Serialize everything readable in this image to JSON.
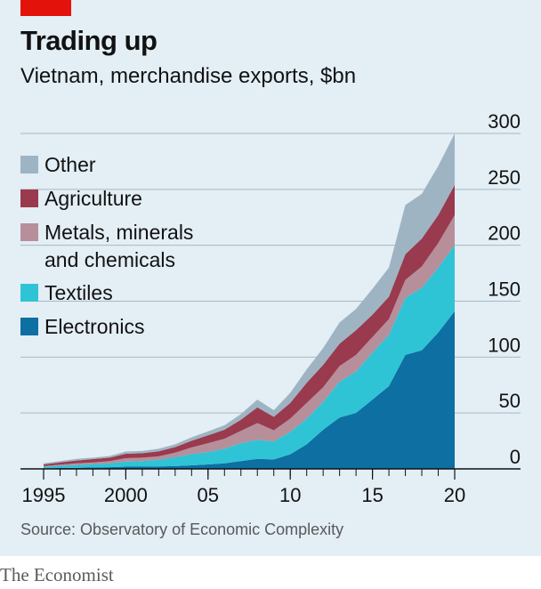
{
  "header": {
    "title": "Trading up",
    "subtitle": "Vietnam, merchandise exports, $bn"
  },
  "footer": {
    "source": "Source: Observatory of Economic Complexity",
    "brand": "The Economist"
  },
  "colors": {
    "Electronics": "#0d6fa2",
    "Textiles": "#2fc3d6",
    "Metals": "#b68f9b",
    "Agriculture": "#9a3a4e",
    "Other": "#9fb4c3",
    "accent": "#e3120b"
  },
  "legend": [
    {
      "key": "Other",
      "label": [
        "Other"
      ]
    },
    {
      "key": "Agriculture",
      "label": [
        "Agriculture"
      ]
    },
    {
      "key": "Metals",
      "label": [
        "Metals, minerals",
        "and chemicals"
      ]
    },
    {
      "key": "Textiles",
      "label": [
        "Textiles"
      ]
    },
    {
      "key": "Electronics",
      "label": [
        "Electronics"
      ]
    }
  ],
  "chart_data": {
    "type": "area",
    "stacked": true,
    "title": "Trading up",
    "subtitle": "Vietnam, merchandise exports, $bn",
    "x": [
      1995,
      1996,
      1997,
      1998,
      1999,
      2000,
      2001,
      2002,
      2003,
      2004,
      2005,
      2006,
      2007,
      2008,
      2009,
      2010,
      2011,
      2012,
      2013,
      2014,
      2015,
      2016,
      2017,
      2018,
      2019,
      2020
    ],
    "x_tick_values": [
      1995,
      2000,
      2005,
      2010,
      2015,
      2020
    ],
    "x_tick_labels": [
      "1995",
      "2000",
      "05",
      "10",
      "15",
      "20"
    ],
    "y_ticks": [
      0,
      50,
      100,
      150,
      200,
      250,
      300
    ],
    "ylim": [
      0,
      300
    ],
    "grid": true,
    "y_axis_position": "right",
    "legend_position": "top-left",
    "series": [
      {
        "name": "Electronics",
        "values": [
          0.5,
          0.8,
          1.0,
          1.3,
          1.5,
          2.0,
          2.0,
          2.2,
          2.5,
          3.2,
          4.0,
          5.0,
          7.0,
          9.0,
          8.5,
          13.0,
          22.0,
          35.0,
          46.0,
          50.0,
          62.0,
          74.0,
          102.0,
          106.0,
          122.0,
          141.0
        ]
      },
      {
        "name": "Textiles",
        "values": [
          1.5,
          2.0,
          2.5,
          3.0,
          3.5,
          4.5,
          5.0,
          6.0,
          8.0,
          10.0,
          11.0,
          13.0,
          16.0,
          17.0,
          16.0,
          20.0,
          23.0,
          25.0,
          32.0,
          37.0,
          42.0,
          46.0,
          51.0,
          56.0,
          58.0,
          59.0
        ]
      },
      {
        "name": "Metals, minerals and chemicals",
        "values": [
          0.5,
          1.0,
          1.5,
          1.5,
          2.0,
          3.0,
          3.0,
          3.0,
          4.0,
          6.0,
          8.0,
          9.0,
          11.0,
          15.0,
          10.0,
          12.0,
          14.0,
          13.0,
          14.0,
          15.0,
          14.0,
          14.0,
          16.0,
          19.0,
          22.0,
          27.0
        ]
      },
      {
        "name": "Agriculture",
        "values": [
          1.5,
          2.0,
          2.5,
          3.0,
          3.0,
          4.0,
          4.0,
          4.5,
          5.0,
          6.0,
          7.0,
          8.0,
          10.0,
          14.0,
          12.0,
          14.0,
          18.0,
          20.0,
          20.0,
          22.0,
          20.0,
          20.0,
          23.0,
          25.0,
          25.0,
          27.0
        ]
      },
      {
        "name": "Other",
        "values": [
          1.0,
          1.2,
          1.5,
          1.2,
          1.5,
          2.0,
          2.0,
          2.3,
          2.5,
          3.0,
          3.5,
          4.0,
          5.0,
          7.0,
          6.0,
          9.0,
          12.0,
          15.0,
          19.0,
          19.0,
          23.0,
          26.0,
          44.0,
          40.0,
          44.0,
          46.0
        ]
      }
    ]
  }
}
